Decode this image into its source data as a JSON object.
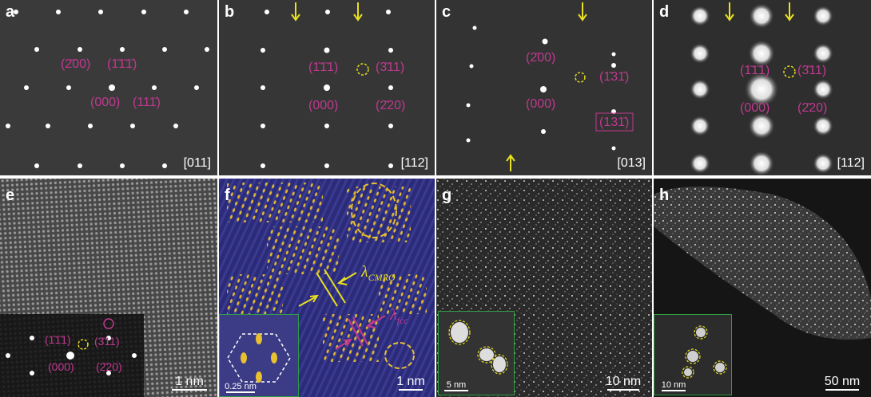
{
  "panels": {
    "a": {
      "letter": "a",
      "labels": [
        "(2̄00)",
        "(1̄1̄1̄)",
        "(000)",
        "(111̄)"
      ],
      "zone_axis": "[011]"
    },
    "b": {
      "letter": "b",
      "labels": [
        "(1̄1̄1)",
        "(3̄11)",
        "(000)",
        "(2̄20)"
      ],
      "zone_axis": "[112]"
    },
    "c": {
      "letter": "c",
      "labels": [
        "(2̄00)",
        "(1̄31̄)",
        "(000)",
        "(131̄)"
      ],
      "zone_axis": "[013]"
    },
    "d": {
      "letter": "d",
      "labels": [
        "(1̄1̄1)",
        "(3̄11)",
        "(000)",
        "(2̄20)"
      ],
      "zone_axis": "[112]"
    },
    "e": {
      "letter": "e",
      "labels": [
        "(1̄1̄1)",
        "(3̄11)",
        "(000)",
        "(2̄20)"
      ],
      "scale_bar": "1 nm"
    },
    "f": {
      "letter": "f",
      "lambda_cmro": "CMRO",
      "lambda_fcc": "fcc",
      "inset_scale": "0.25 nm",
      "scale_bar": "1 nm"
    },
    "g": {
      "letter": "g",
      "inset_scale": "5 nm",
      "scale_bar": "10 nm"
    },
    "h": {
      "letter": "h",
      "inset_scale": "10 nm",
      "scale_bar": "50 nm"
    }
  },
  "colors": {
    "index_label": "#c0398f",
    "arrow": "#e8e020",
    "inset_border": "#2e9e44",
    "panel_f_bg": "#2b2b7a",
    "panel_f_feature": "#e8c030"
  }
}
